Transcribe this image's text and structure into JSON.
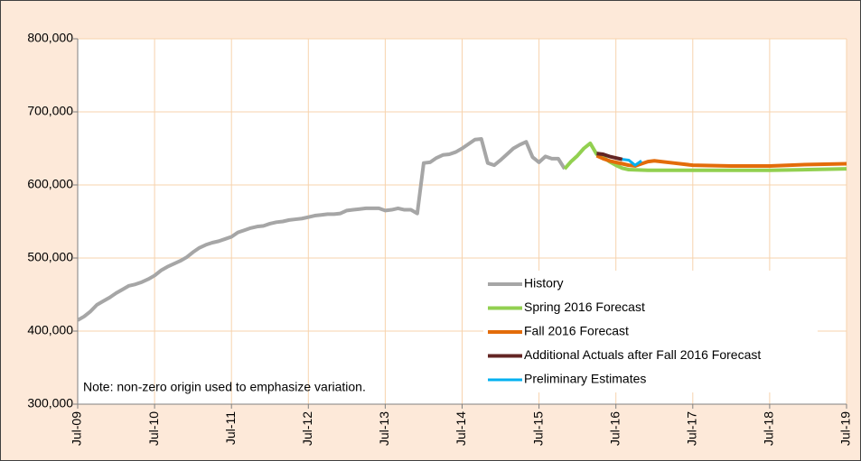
{
  "chart_data": {
    "type": "line",
    "note": "Note: non-zero origin used to emphasize variation.",
    "xlim": [
      "2009-07",
      "2019-07"
    ],
    "xticks": [
      {
        "value": "2009-07",
        "label": "Jul-09"
      },
      {
        "value": "2010-07",
        "label": "Jul-10"
      },
      {
        "value": "2011-07",
        "label": "Jul-11"
      },
      {
        "value": "2012-07",
        "label": "Jul-12"
      },
      {
        "value": "2013-07",
        "label": "Jul-13"
      },
      {
        "value": "2014-07",
        "label": "Jul-14"
      },
      {
        "value": "2015-07",
        "label": "Jul-15"
      },
      {
        "value": "2016-07",
        "label": "Jul-16"
      },
      {
        "value": "2017-07",
        "label": "Jul-17"
      },
      {
        "value": "2018-07",
        "label": "Jul-18"
      },
      {
        "value": "2019-07",
        "label": "Jul-19"
      }
    ],
    "ylim": [
      300000,
      800000
    ],
    "yticks": [
      {
        "value": 300000,
        "label": "300,000"
      },
      {
        "value": 400000,
        "label": "400,000"
      },
      {
        "value": 500000,
        "label": "500,000"
      },
      {
        "value": 600000,
        "label": "600,000"
      },
      {
        "value": 700000,
        "label": "700,000"
      },
      {
        "value": 800000,
        "label": "800,000"
      }
    ],
    "grid": true,
    "legend": "lower right",
    "series": [
      {
        "name": "History",
        "color": "#a6a6a6",
        "x": [
          "2009-07",
          "2009-08",
          "2009-09",
          "2009-10",
          "2009-11",
          "2009-12",
          "2010-01",
          "2010-02",
          "2010-03",
          "2010-04",
          "2010-05",
          "2010-06",
          "2010-07",
          "2010-08",
          "2010-09",
          "2010-10",
          "2010-11",
          "2010-12",
          "2011-01",
          "2011-02",
          "2011-03",
          "2011-04",
          "2011-05",
          "2011-06",
          "2011-07",
          "2011-08",
          "2011-09",
          "2011-10",
          "2011-11",
          "2011-12",
          "2012-01",
          "2012-02",
          "2012-03",
          "2012-04",
          "2012-05",
          "2012-06",
          "2012-07",
          "2012-08",
          "2012-09",
          "2012-10",
          "2012-11",
          "2012-12",
          "2013-01",
          "2013-02",
          "2013-03",
          "2013-04",
          "2013-05",
          "2013-06",
          "2013-07",
          "2013-08",
          "2013-09",
          "2013-10",
          "2013-11",
          "2013-12",
          "2014-01",
          "2014-02",
          "2014-03",
          "2014-04",
          "2014-05",
          "2014-06",
          "2014-07",
          "2014-08",
          "2014-09",
          "2014-10",
          "2014-11",
          "2014-12",
          "2015-01",
          "2015-02",
          "2015-03",
          "2015-04",
          "2015-05",
          "2015-06",
          "2015-07",
          "2015-08",
          "2015-09",
          "2015-10",
          "2015-11"
        ],
        "values": [
          415000,
          420000,
          427000,
          436000,
          441000,
          446000,
          452000,
          457000,
          462000,
          464000,
          467000,
          471000,
          476000,
          483000,
          488000,
          492000,
          496000,
          501000,
          508000,
          514000,
          518000,
          521000,
          523000,
          526000,
          529000,
          535000,
          538000,
          541000,
          543000,
          544000,
          547000,
          549000,
          550000,
          552000,
          553000,
          554000,
          556000,
          558000,
          559000,
          560000,
          560000,
          561000,
          565000,
          566000,
          567000,
          568000,
          568000,
          568000,
          565000,
          566000,
          568000,
          566000,
          566000,
          561000,
          630000,
          631000,
          637000,
          641000,
          642000,
          645000,
          650000,
          656000,
          662000,
          663000,
          630000,
          627000,
          634000,
          642000,
          650000,
          655000,
          659000,
          638000,
          631000,
          639000,
          636000,
          636000,
          622000
        ]
      },
      {
        "name": "Spring 2016 Forecast",
        "color": "#92d050",
        "x": [
          "2015-11",
          "2015-12",
          "2016-01",
          "2016-02",
          "2016-03",
          "2016-04",
          "2016-05",
          "2016-06",
          "2016-07",
          "2016-08",
          "2016-09",
          "2016-12",
          "2017-03",
          "2017-07",
          "2018-01",
          "2018-07",
          "2019-01",
          "2019-07"
        ],
        "values": [
          622000,
          632000,
          640000,
          650000,
          657000,
          642000,
          638000,
          632000,
          627000,
          623000,
          621000,
          620000,
          620000,
          620000,
          620000,
          620000,
          621000,
          622000
        ]
      },
      {
        "name": "Fall 2016 Forecast",
        "color": "#e36c0a",
        "x": [
          "2016-04",
          "2016-05",
          "2016-06",
          "2016-07",
          "2016-08",
          "2016-09",
          "2016-10",
          "2016-11",
          "2016-12",
          "2017-01",
          "2017-04",
          "2017-07",
          "2018-01",
          "2018-07",
          "2019-01",
          "2019-07"
        ],
        "values": [
          640000,
          636000,
          633000,
          631000,
          629000,
          627000,
          626000,
          629000,
          632000,
          633000,
          630000,
          627000,
          626000,
          626000,
          628000,
          629000
        ]
      },
      {
        "name": "Additional Actuals after Fall 2016 Forecast",
        "color": "#632523",
        "x": [
          "2016-04",
          "2016-05",
          "2016-06",
          "2016-07",
          "2016-08"
        ],
        "values": [
          643000,
          642000,
          639000,
          637000,
          635000
        ]
      },
      {
        "name": "Preliminary Estimates",
        "color": "#00b0f0",
        "x": [
          "2016-08",
          "2016-09",
          "2016-10",
          "2016-11"
        ],
        "values": [
          635000,
          634000,
          627000,
          633000
        ]
      }
    ]
  }
}
